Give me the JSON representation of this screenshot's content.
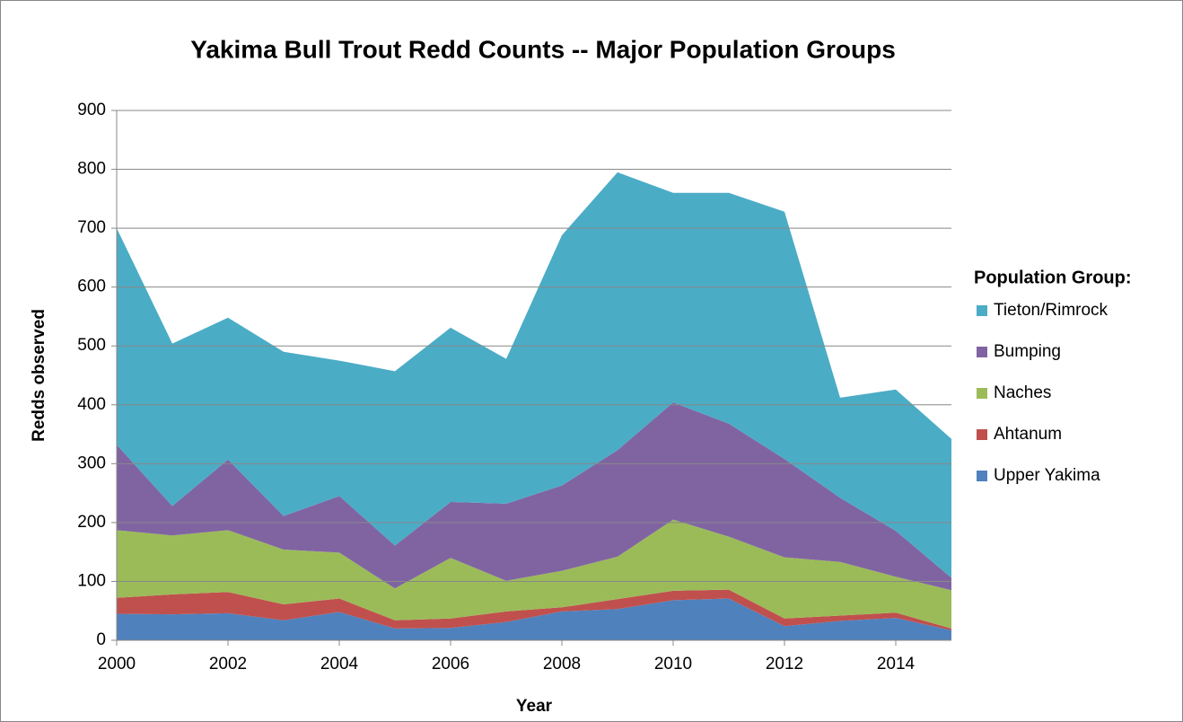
{
  "chart_data": {
    "type": "stacked_area",
    "title": "Yakima Bull Trout Redd Counts -- Major Population Groups",
    "x_label": "Year",
    "y_label": "Redds observed",
    "legend_title": "Population Group:",
    "legend": "right",
    "x": [
      2000,
      2001,
      2002,
      2003,
      2004,
      2005,
      2006,
      2007,
      2008,
      2009,
      2010,
      2011,
      2012,
      2013,
      2014,
      2015
    ],
    "xlim": [
      2000,
      2015
    ],
    "xticks": [
      2000,
      2002,
      2004,
      2006,
      2008,
      2010,
      2012,
      2014
    ],
    "ylim": [
      0,
      900
    ],
    "yticks": [
      0,
      100,
      200,
      300,
      400,
      500,
      600,
      700,
      800,
      900
    ],
    "grid": true,
    "series": [
      {
        "name": "Upper Yakima",
        "color": "#4f81bd",
        "values": [
          45,
          44,
          46,
          34,
          48,
          20,
          21,
          31,
          49,
          53,
          68,
          71,
          24,
          33,
          38,
          17
        ]
      },
      {
        "name": "Ahtanum",
        "color": "#c0504d",
        "values": [
          27,
          34,
          36,
          27,
          23,
          14,
          16,
          18,
          7,
          17,
          16,
          15,
          13,
          9,
          9,
          3
        ]
      },
      {
        "name": "Naches",
        "color": "#9bbb59",
        "values": [
          115,
          100,
          105,
          93,
          78,
          54,
          103,
          52,
          62,
          72,
          121,
          90,
          104,
          91,
          61,
          65
        ]
      },
      {
        "name": "Bumping",
        "color": "#8064a2",
        "values": [
          145,
          50,
          120,
          57,
          96,
          73,
          95,
          131,
          145,
          181,
          199,
          192,
          167,
          109,
          78,
          21
        ]
      },
      {
        "name": "Tieton/Rimrock",
        "color": "#4bacc6",
        "values": [
          368,
          276,
          241,
          279,
          230,
          296,
          296,
          246,
          425,
          472,
          356,
          392,
          420,
          170,
          240,
          236
        ]
      }
    ]
  }
}
